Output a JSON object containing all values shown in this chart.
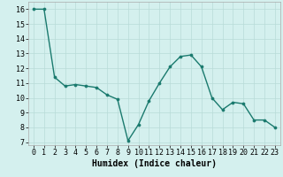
{
  "x": [
    0,
    1,
    2,
    3,
    4,
    5,
    6,
    7,
    8,
    9,
    10,
    11,
    12,
    13,
    14,
    15,
    16,
    17,
    18,
    19,
    20,
    21,
    22,
    23
  ],
  "y": [
    16.0,
    16.0,
    11.4,
    10.8,
    10.9,
    10.8,
    10.7,
    10.2,
    9.9,
    7.1,
    8.2,
    9.8,
    11.0,
    12.1,
    12.8,
    12.9,
    12.1,
    10.0,
    9.2,
    9.7,
    9.6,
    8.5,
    8.5,
    8.0
  ],
  "xlabel": "Humidex (Indice chaleur)",
  "xlim": [
    -0.5,
    23.5
  ],
  "ylim": [
    6.8,
    16.5
  ],
  "yticks": [
    7,
    8,
    9,
    10,
    11,
    12,
    13,
    14,
    15,
    16
  ],
  "xticks": [
    0,
    1,
    2,
    3,
    4,
    5,
    6,
    7,
    8,
    9,
    10,
    11,
    12,
    13,
    14,
    15,
    16,
    17,
    18,
    19,
    20,
    21,
    22,
    23
  ],
  "line_color": "#1a7a6e",
  "marker_color": "#1a7a6e",
  "bg_color": "#d4f0ee",
  "grid_color": "#b8dbd8",
  "xlabel_fontsize": 7,
  "tick_fontsize": 6
}
